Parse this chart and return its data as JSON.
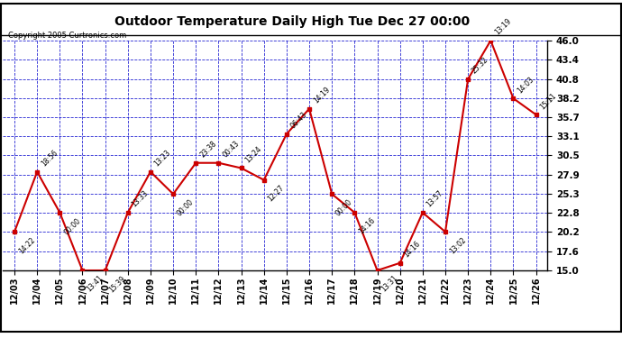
{
  "title": "Outdoor Temperature Daily High Tue Dec 27 00:00",
  "copyright": "Copyright 2005 Curtronics.com",
  "fig_bg_color": "#ffffff",
  "title_bg_color": "#ffffff",
  "plot_bg_color": "#ffffff",
  "grid_color": "#0000cc",
  "line_color": "#cc0000",
  "marker_color": "#cc0000",
  "ylim": [
    15.0,
    46.0
  ],
  "yticks": [
    15.0,
    17.6,
    20.2,
    22.8,
    25.3,
    27.9,
    30.5,
    33.1,
    35.7,
    38.2,
    40.8,
    43.4,
    46.0
  ],
  "dates": [
    "12/03",
    "12/04",
    "12/05",
    "12/06",
    "12/07",
    "12/08",
    "12/09",
    "12/10",
    "12/11",
    "12/12",
    "12/13",
    "12/14",
    "12/15",
    "12/16",
    "12/17",
    "12/18",
    "12/19",
    "12/20",
    "12/21",
    "12/22",
    "12/23",
    "12/24",
    "12/25",
    "12/26"
  ],
  "values": [
    20.2,
    28.3,
    22.8,
    15.0,
    15.0,
    22.8,
    28.3,
    25.3,
    29.5,
    29.5,
    28.8,
    27.2,
    33.4,
    36.8,
    25.3,
    22.8,
    15.0,
    16.0,
    22.8,
    20.2,
    40.8,
    46.0,
    38.2,
    36.0
  ],
  "labels": [
    "14:22",
    "18:56",
    "00:00",
    "13:41",
    "15:39",
    "13:33",
    "13:23",
    "00:00",
    "23:38",
    "00:43",
    "13:24",
    "12:27",
    "06:43",
    "14:19",
    "00:00",
    "14:16",
    "13:31",
    "14:16",
    "13:57",
    "13:02",
    "25:32",
    "13:19",
    "14:03",
    "15:11"
  ],
  "label_above": [
    false,
    true,
    false,
    false,
    false,
    true,
    true,
    false,
    true,
    true,
    true,
    false,
    true,
    true,
    false,
    false,
    false,
    true,
    true,
    false,
    true,
    true,
    true,
    true
  ]
}
